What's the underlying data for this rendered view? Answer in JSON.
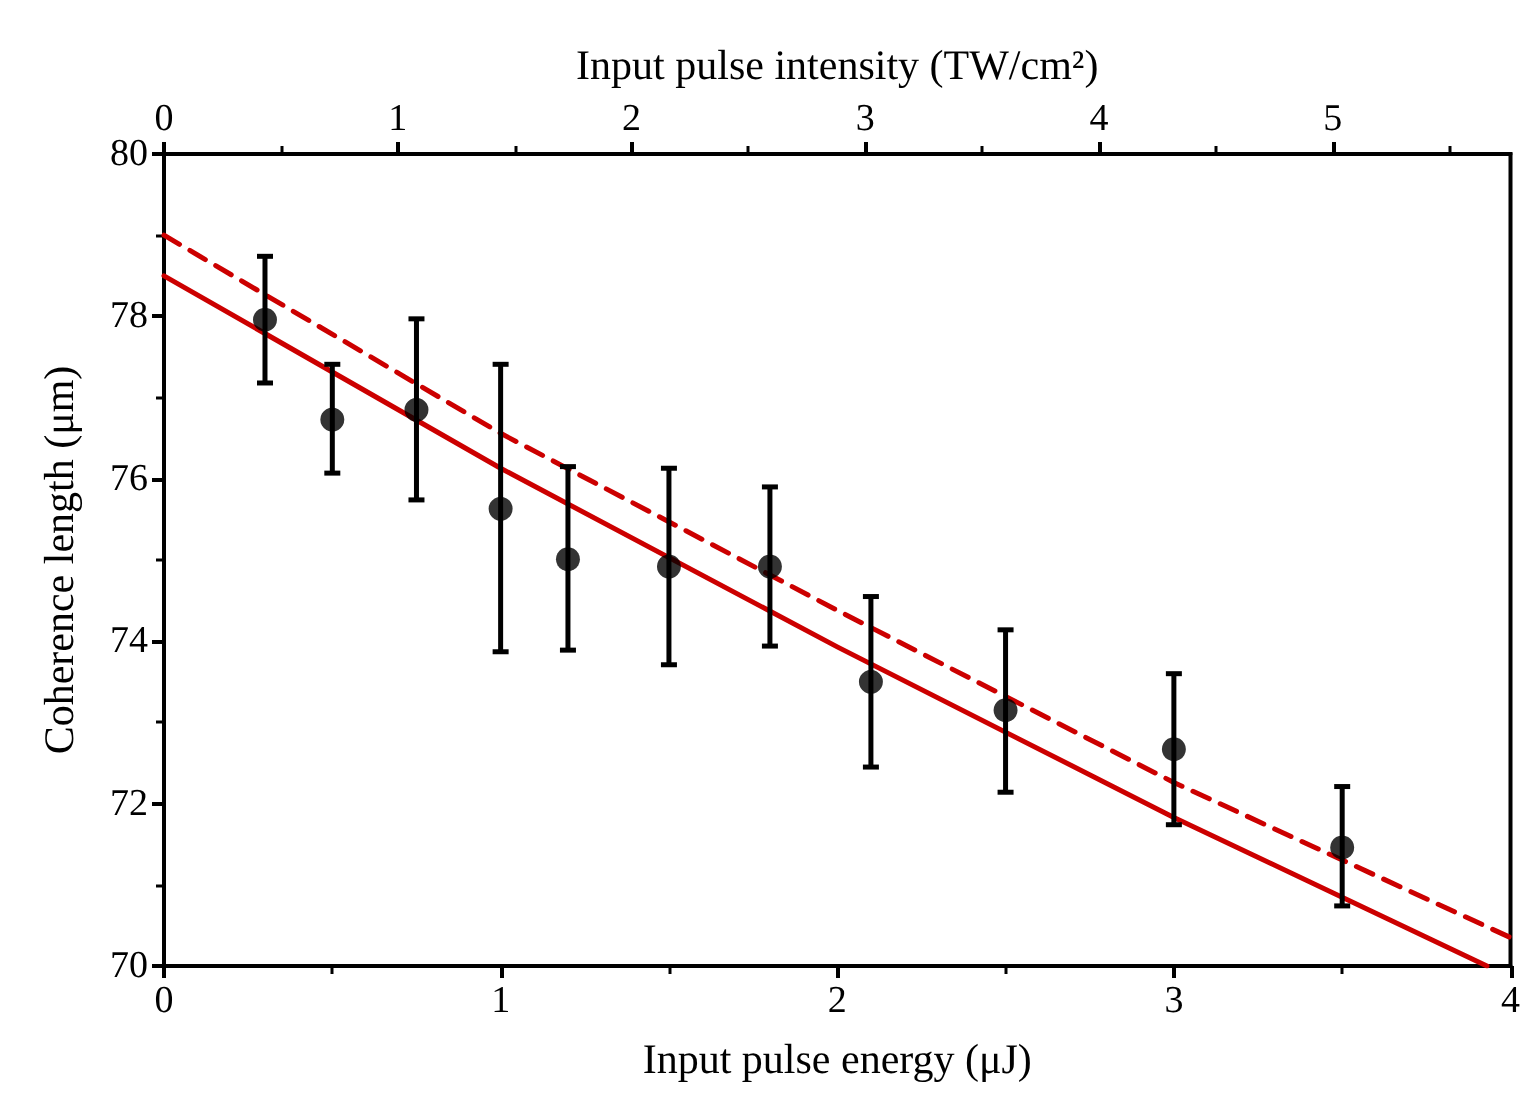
{
  "chart_data": {
    "type": "scatter",
    "xlabel": "Input pulse energy (μJ)",
    "ylabel": "Coherence length (μm)",
    "x2label": "Input pulse intensity (TW/cm²)",
    "xlim": [
      0,
      4
    ],
    "xticks": [
      0,
      1,
      2,
      3,
      4
    ],
    "ylim": [
      70,
      80
    ],
    "yticks": [
      70,
      72,
      74,
      76,
      78,
      80
    ],
    "x2lim": [
      0,
      5.76
    ],
    "x2ticks": [
      0,
      1,
      2,
      3,
      4,
      5
    ],
    "grid": false,
    "series": [
      {
        "color": "#000000",
        "marker": "circle",
        "x": [
          0.3,
          0.5,
          0.75,
          1.0,
          1.2,
          1.5,
          1.8,
          2.1,
          2.5,
          3.0,
          3.5
        ],
        "values": [
          77.96,
          76.73,
          76.85,
          75.63,
          75.01,
          74.92,
          74.92,
          73.5,
          73.15,
          72.67,
          71.46
        ],
        "errors": [
          [
            77.18,
            78.74
          ],
          [
            76.07,
            77.41
          ],
          [
            75.74,
            77.97
          ],
          [
            73.87,
            77.41
          ],
          [
            73.89,
            76.15
          ],
          [
            73.71,
            76.13
          ],
          [
            73.94,
            75.9
          ],
          [
            72.45,
            74.55
          ],
          [
            72.14,
            74.14
          ],
          [
            71.74,
            73.6
          ],
          [
            70.74,
            72.21
          ]
        ]
      },
      {
        "type": "line",
        "color": "#cc0000",
        "line_style": "solid",
        "marker": "none",
        "x": [
          0,
          1,
          2,
          3,
          3.93
        ],
        "values": [
          78.5,
          76.13,
          73.93,
          71.83,
          70.0
        ]
      },
      {
        "type": "line",
        "color": "#cc0000",
        "line_style": "dashed",
        "marker": "none",
        "x": [
          0,
          1,
          2,
          3,
          4
        ],
        "values": [
          79.0,
          76.56,
          74.38,
          72.26,
          70.35
        ]
      }
    ]
  }
}
